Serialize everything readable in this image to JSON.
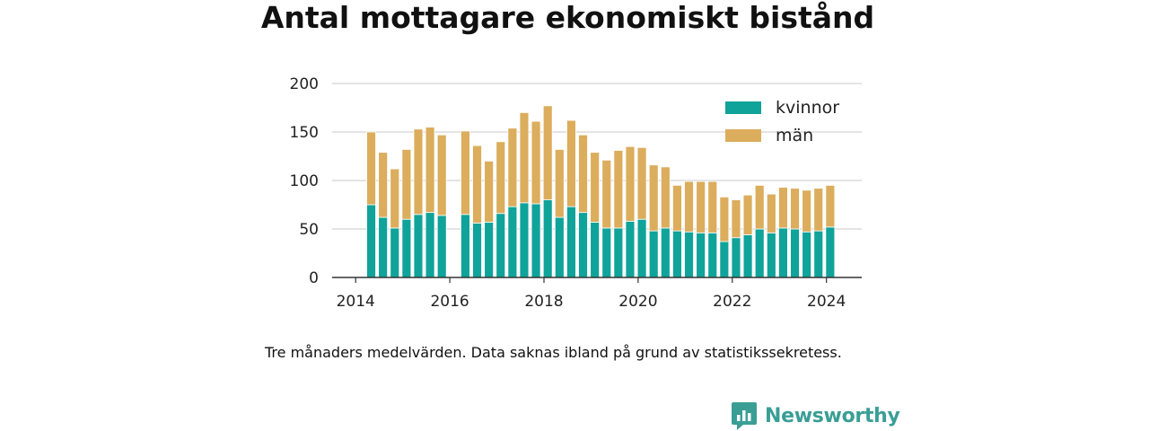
{
  "title": "Antal mottagare ekonomiskt bistånd",
  "note": "Tre månaders medelvärden. Data saknas ibland på grund av statistikssekretess.",
  "brand": {
    "name": "Newsworthy",
    "logo_icon": "chart-bubble-icon",
    "color": "#3a9e95"
  },
  "chart_data": {
    "type": "bar",
    "stacked": true,
    "ylim": [
      0,
      200
    ],
    "yticks": [
      0,
      50,
      100,
      150,
      200
    ],
    "xlim": [
      2013.5,
      2024.75
    ],
    "xticks": [
      2014,
      2016,
      2018,
      2020,
      2022,
      2024
    ],
    "grid": true,
    "legend_position": "top-right",
    "bar_width_years": 0.19,
    "x": [
      2014.33,
      2014.58,
      2014.83,
      2015.08,
      2015.33,
      2015.58,
      2015.83,
      2016.33,
      2016.58,
      2016.83,
      2017.08,
      2017.33,
      2017.58,
      2017.83,
      2018.08,
      2018.33,
      2018.58,
      2018.83,
      2019.08,
      2019.33,
      2019.58,
      2019.83,
      2020.08,
      2020.33,
      2020.58,
      2020.83,
      2021.08,
      2021.33,
      2021.58,
      2021.83,
      2022.08,
      2022.33,
      2022.58,
      2022.83,
      2023.08,
      2023.33,
      2023.58,
      2023.83,
      2024.08
    ],
    "series": [
      {
        "name": "kvinnor",
        "color": "#0fa39a",
        "values": [
          75,
          62,
          51,
          60,
          65,
          67,
          64,
          65,
          56,
          57,
          66,
          73,
          77,
          76,
          80,
          62,
          73,
          67,
          57,
          51,
          51,
          58,
          60,
          48,
          51,
          48,
          47,
          46,
          46,
          37,
          41,
          44,
          50,
          46,
          51,
          50,
          47,
          48,
          52
        ]
      },
      {
        "name": "män",
        "color": "#dbad5c",
        "values": [
          75,
          67,
          61,
          72,
          88,
          88,
          83,
          86,
          80,
          63,
          74,
          81,
          93,
          85,
          97,
          70,
          89,
          80,
          72,
          70,
          80,
          77,
          74,
          68,
          63,
          47,
          52,
          53,
          53,
          46,
          39,
          41,
          45,
          40,
          42,
          42,
          43,
          44,
          43
        ]
      }
    ]
  }
}
